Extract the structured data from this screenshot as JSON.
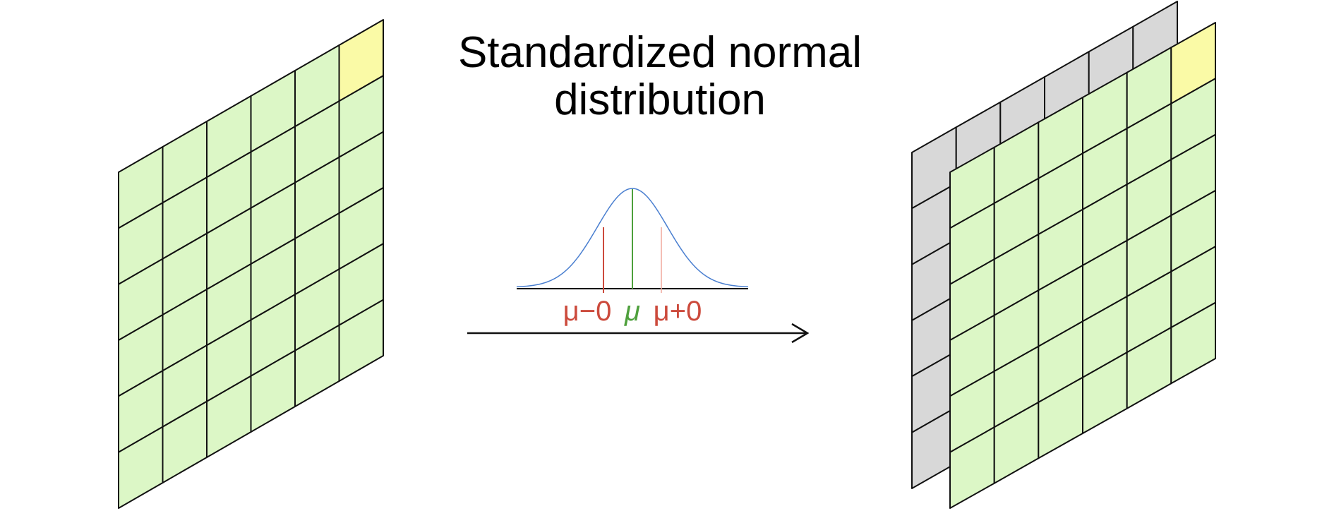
{
  "title": {
    "line1": "Standardized normal",
    "line2": "distribution"
  },
  "distribution_labels": {
    "left": "μ−0",
    "center": "μ",
    "right": "μ+0"
  },
  "grids": {
    "input": {
      "rows": 6,
      "cols": 6,
      "highlighted_cell": [
        0,
        5
      ]
    },
    "output_front": {
      "rows": 6,
      "cols": 6,
      "highlighted_cell": [
        0,
        5
      ]
    },
    "output_back": {
      "rows": 6,
      "cols": 6
    }
  },
  "colors": {
    "cell_fill": "#dcf7c6",
    "highlight_fill": "#fafaa6",
    "back_fill": "#d8d8d8",
    "grid_line": "#111111",
    "curve": "#4a7fd0",
    "mean_line": "#4ea03c",
    "sigma_left": "#cc4a3c",
    "sigma_right": "#f0a89c",
    "label_red": "#cc4a3c",
    "label_green": "#4ea03c",
    "arrow": "#111111"
  }
}
